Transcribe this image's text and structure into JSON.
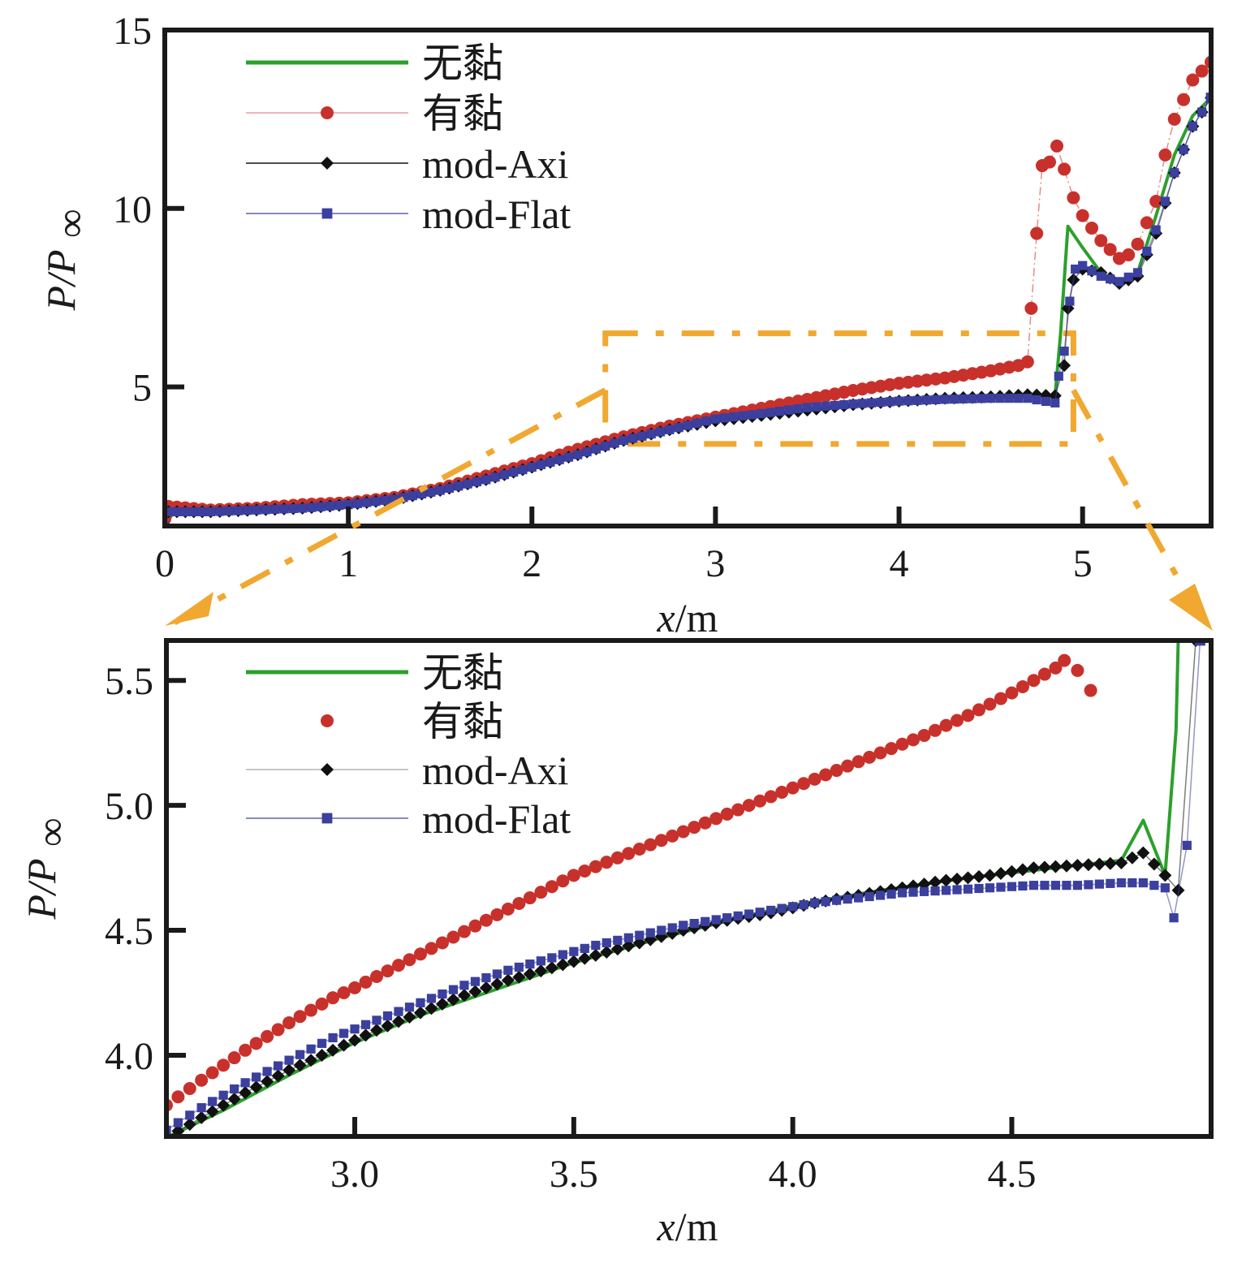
{
  "chart_data": [
    {
      "type": "line",
      "title": "",
      "xlabel_italic": "x",
      "xlabel_unit": "/m",
      "ylabel_main": "P/P",
      "ylabel_sub": "∞",
      "xlim": [
        0,
        5.7
      ],
      "ylim": [
        1.1,
        15
      ],
      "xticks": [
        0,
        1,
        2,
        3,
        4,
        5
      ],
      "xtick_labels": [
        "0",
        "1",
        "2",
        "3",
        "4",
        "5"
      ],
      "yticks": [
        5,
        10,
        15
      ],
      "ytick_labels": [
        "5",
        "10",
        "15"
      ],
      "grid": false,
      "legend_position": "top-left",
      "series": [
        {
          "name": "无黏",
          "color": "#2ca02c",
          "marker": "none",
          "style": "solid-thick",
          "x": [
            0,
            0.05,
            0.5,
            1.0,
            1.5,
            2.0,
            2.5,
            3.0,
            3.5,
            4.0,
            4.5,
            4.85,
            4.88,
            4.92,
            5.0,
            5.1,
            5.2,
            5.3,
            5.4,
            5.5,
            5.6,
            5.7
          ],
          "y": [
            1.1,
            1.5,
            1.55,
            1.7,
            2.1,
            2.75,
            3.5,
            4.05,
            4.35,
            4.6,
            4.7,
            4.75,
            6.5,
            9.5,
            8.9,
            8.2,
            7.8,
            8.2,
            9.8,
            11.5,
            12.6,
            13.1
          ]
        },
        {
          "name": "有黏",
          "color": "#c8312b",
          "marker": "circle",
          "style": "thin-dashdot",
          "x": [
            0,
            0.02,
            0.25,
            0.5,
            0.75,
            1.0,
            1.25,
            1.5,
            1.75,
            2.0,
            2.25,
            2.5,
            2.75,
            3.0,
            3.25,
            3.5,
            3.75,
            4.0,
            4.25,
            4.5,
            4.65,
            4.7,
            4.72,
            4.75,
            4.78,
            4.82,
            4.86,
            4.9,
            4.95,
            5.0,
            5.1,
            5.2,
            5.25,
            5.3,
            5.4,
            5.45,
            5.5,
            5.6,
            5.7
          ],
          "y": [
            1.3,
            1.65,
            1.55,
            1.6,
            1.7,
            1.75,
            1.9,
            2.15,
            2.5,
            2.85,
            3.25,
            3.6,
            3.9,
            4.15,
            4.4,
            4.65,
            4.9,
            5.1,
            5.25,
            5.45,
            5.6,
            5.7,
            7.2,
            9.3,
            11.2,
            11.3,
            11.75,
            11.1,
            10.3,
            9.8,
            9.1,
            8.6,
            8.7,
            9.0,
            10.2,
            11.5,
            12.5,
            13.6,
            14.1
          ]
        },
        {
          "name": "mod-Axi",
          "color": "#111111",
          "marker": "diamond",
          "style": "thin",
          "x": [
            0,
            0.02,
            0.25,
            0.5,
            0.75,
            1.0,
            1.25,
            1.5,
            1.75,
            2.0,
            2.25,
            2.5,
            2.75,
            3.0,
            3.25,
            3.5,
            3.75,
            4.0,
            4.25,
            4.5,
            4.7,
            4.85,
            4.9,
            4.92,
            4.95,
            5.0,
            5.1,
            5.2,
            5.3,
            5.4,
            5.5,
            5.6,
            5.7
          ],
          "y": [
            1.1,
            1.5,
            1.5,
            1.55,
            1.6,
            1.7,
            1.85,
            2.1,
            2.4,
            2.75,
            3.1,
            3.5,
            3.8,
            4.05,
            4.2,
            4.35,
            4.5,
            4.6,
            4.68,
            4.72,
            4.78,
            4.75,
            5.6,
            7.2,
            8.0,
            8.3,
            8.2,
            7.9,
            8.1,
            9.3,
            11.0,
            12.3,
            13.1
          ]
        },
        {
          "name": "mod-Flat",
          "color": "#3b3f9e",
          "marker": "square",
          "style": "thin",
          "x": [
            0,
            0.02,
            0.25,
            0.5,
            0.75,
            1.0,
            1.25,
            1.5,
            1.75,
            2.0,
            2.25,
            2.5,
            2.75,
            3.0,
            3.25,
            3.5,
            3.75,
            4.0,
            4.25,
            4.5,
            4.7,
            4.85,
            4.87,
            4.9,
            4.93,
            4.96,
            5.0,
            5.1,
            5.2,
            5.3,
            5.4,
            5.5,
            5.6,
            5.7
          ],
          "y": [
            1.1,
            1.5,
            1.5,
            1.55,
            1.6,
            1.7,
            1.85,
            2.1,
            2.4,
            2.75,
            3.1,
            3.5,
            3.8,
            4.1,
            4.25,
            4.42,
            4.52,
            4.6,
            4.65,
            4.68,
            4.68,
            4.55,
            5.3,
            6.0,
            7.4,
            8.3,
            8.4,
            8.1,
            7.95,
            8.2,
            9.4,
            11.0,
            12.3,
            13.1
          ]
        }
      ],
      "annotations": {
        "zoom_box_x": [
          2.4,
          4.95
        ],
        "zoom_box_y": [
          3.4,
          6.5
        ],
        "zoom_box_color": "#f0a830"
      }
    },
    {
      "type": "line",
      "title": "",
      "xlabel_italic": "x",
      "xlabel_unit": "/m",
      "ylabel_main": "P/P",
      "ylabel_sub": "∞",
      "xlim": [
        2.57,
        4.955
      ],
      "ylim": [
        3.675,
        5.66
      ],
      "xticks": [
        3.0,
        3.5,
        4.0,
        4.5
      ],
      "xtick_labels": [
        "3.0",
        "3.5",
        "4.0",
        "4.5"
      ],
      "yticks": [
        4.0,
        4.5,
        5.0,
        5.5
      ],
      "ytick_labels": [
        "4.0",
        "4.5",
        "5.0",
        "5.5"
      ],
      "grid": false,
      "legend_position": "top-left",
      "series": [
        {
          "name": "无黏",
          "color": "#2ca02c",
          "marker": "none",
          "style": "solid-thick",
          "x": [
            2.57,
            2.7,
            2.85,
            3.0,
            3.15,
            3.3,
            3.5,
            3.7,
            3.9,
            4.0,
            4.2,
            4.4,
            4.6,
            4.75,
            4.8,
            4.85,
            4.875,
            4.88
          ],
          "y": [
            3.67,
            3.78,
            3.92,
            4.05,
            4.16,
            4.25,
            4.37,
            4.47,
            4.56,
            4.6,
            4.66,
            4.71,
            4.75,
            4.78,
            4.94,
            4.72,
            5.3,
            5.66
          ]
        },
        {
          "name": "有黏",
          "color": "#c8312b",
          "marker": "circle",
          "style": "dots",
          "x": [
            2.57,
            2.65,
            2.75,
            2.85,
            2.95,
            3.0,
            3.1,
            3.2,
            3.3,
            3.4,
            3.5,
            3.6,
            3.7,
            3.8,
            3.9,
            4.0,
            4.1,
            4.2,
            4.3,
            4.4,
            4.5,
            4.55,
            4.6,
            4.62,
            4.65,
            4.68
          ],
          "y": [
            3.8,
            3.9,
            4.02,
            4.13,
            4.23,
            4.27,
            4.36,
            4.45,
            4.54,
            4.63,
            4.72,
            4.79,
            4.86,
            4.93,
            5.0,
            5.07,
            5.14,
            5.21,
            5.28,
            5.36,
            5.45,
            5.5,
            5.55,
            5.58,
            5.54,
            5.46
          ]
        },
        {
          "name": "mod-Axi",
          "color": "#111111",
          "marker": "diamond",
          "style": "thin",
          "x": [
            2.57,
            2.65,
            2.75,
            2.85,
            2.95,
            3.05,
            3.15,
            3.25,
            3.35,
            3.45,
            3.55,
            3.65,
            3.75,
            3.85,
            3.95,
            4.05,
            4.15,
            4.25,
            4.35,
            4.45,
            4.55,
            4.65,
            4.75,
            4.8,
            4.85,
            4.88,
            4.92
          ],
          "y": [
            3.67,
            3.75,
            3.85,
            3.94,
            4.02,
            4.1,
            4.17,
            4.24,
            4.3,
            4.35,
            4.4,
            4.45,
            4.5,
            4.54,
            4.57,
            4.61,
            4.64,
            4.67,
            4.7,
            4.72,
            4.75,
            4.76,
            4.77,
            4.81,
            4.72,
            4.66,
            5.66
          ]
        },
        {
          "name": "mod-Flat",
          "color": "#3b3f9e",
          "marker": "square",
          "style": "thin",
          "x": [
            2.57,
            2.65,
            2.75,
            2.85,
            2.95,
            3.05,
            3.15,
            3.25,
            3.35,
            3.45,
            3.55,
            3.65,
            3.75,
            3.85,
            3.95,
            4.05,
            4.15,
            4.25,
            4.35,
            4.45,
            4.55,
            4.65,
            4.75,
            4.8,
            4.85,
            4.87,
            4.9,
            4.93
          ],
          "y": [
            3.7,
            3.79,
            3.89,
            3.98,
            4.07,
            4.14,
            4.21,
            4.28,
            4.34,
            4.39,
            4.44,
            4.48,
            4.52,
            4.55,
            4.58,
            4.61,
            4.63,
            4.65,
            4.66,
            4.67,
            4.68,
            4.68,
            4.69,
            4.69,
            4.67,
            4.55,
            4.84,
            5.66
          ]
        }
      ]
    }
  ]
}
